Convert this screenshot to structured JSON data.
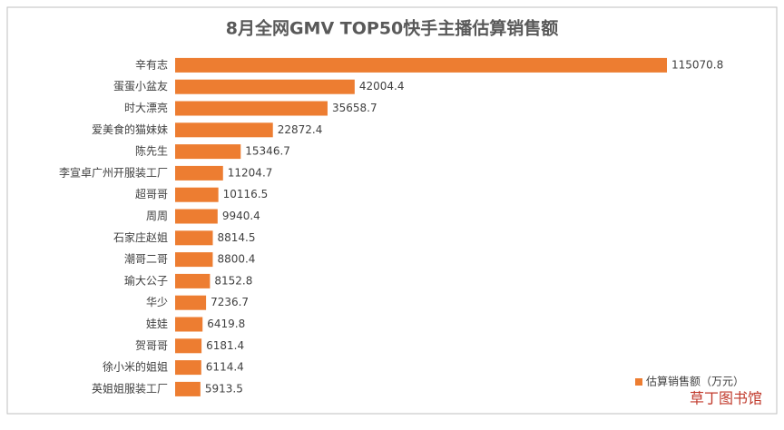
{
  "chart_data": {
    "type": "bar",
    "orientation": "horizontal",
    "title": "8月全网GMV TOP50快手主播估算销售额",
    "categories": [
      "辛有志",
      "蛋蛋小盆友",
      "时大漂亮",
      "爱美食的猫妹妹",
      "陈先生",
      "李宣卓广州开服装工厂",
      "超哥哥",
      "周周",
      "石家庄赵姐",
      "潮哥二哥",
      "瑜大公子",
      "华少",
      "娃娃",
      "贺哥哥",
      "徐小米的姐姐",
      "英姐姐服装工厂"
    ],
    "series": [
      {
        "name": "估算销售额（万元）",
        "color": "#ed7d31",
        "values": [
          115070.8,
          42004.4,
          35658.7,
          22872.4,
          15346.7,
          11204.7,
          10116.5,
          9940.4,
          8814.5,
          8800.4,
          8152.8,
          7236.7,
          6419.8,
          6181.4,
          6114.4,
          5913.5
        ]
      }
    ],
    "legend": "bottom-right",
    "watermark": "草丁图书馆"
  }
}
